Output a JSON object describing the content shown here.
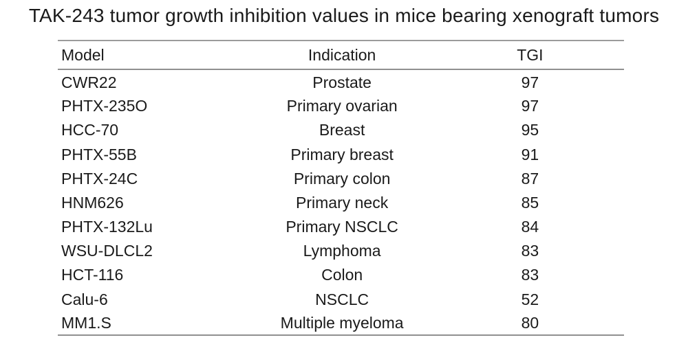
{
  "title": "TAK-243 tumor growth inhibition values in mice bearing xenograft tumors",
  "table": {
    "headers": [
      "Model",
      "Indication",
      "TGI"
    ],
    "rows": [
      [
        "CWR22",
        "Prostate",
        "97"
      ],
      [
        "PHTX-235O",
        "Primary ovarian",
        "97"
      ],
      [
        "HCC-70",
        "Breast",
        "95"
      ],
      [
        "PHTX-55B",
        "Primary breast",
        "91"
      ],
      [
        "PHTX-24C",
        "Primary colon",
        "87"
      ],
      [
        "HNM626",
        "Primary neck",
        "85"
      ],
      [
        "PHTX-132Lu",
        "Primary NSCLC",
        "84"
      ],
      [
        "WSU-DLCL2",
        "Lymphoma",
        "83"
      ],
      [
        "HCT-116",
        "Colon",
        "83"
      ],
      [
        "Calu-6",
        "NSCLC",
        "52"
      ],
      [
        "MM1.S",
        "Multiple myeloma",
        "80"
      ]
    ]
  },
  "chart_data": {
    "type": "table",
    "title": "TAK-243 tumor growth inhibition values in mice bearing xenograft tumors",
    "columns": [
      "Model",
      "Indication",
      "TGI"
    ],
    "models": [
      "CWR22",
      "PHTX-235O",
      "HCC-70",
      "PHTX-55B",
      "PHTX-24C",
      "HNM626",
      "PHTX-132Lu",
      "WSU-DLCL2",
      "HCT-116",
      "Calu-6",
      "MM1.S"
    ],
    "indications": [
      "Prostate",
      "Primary ovarian",
      "Breast",
      "Primary breast",
      "Primary colon",
      "Primary neck",
      "Primary NSCLC",
      "Lymphoma",
      "Colon",
      "NSCLC",
      "Multiple myeloma"
    ],
    "tgi_values": [
      97,
      97,
      95,
      91,
      87,
      85,
      84,
      83,
      83,
      52,
      80
    ]
  },
  "colors": {
    "text": "#1a1a1a",
    "rule": "#8f8f8f",
    "rule_top": "#9b9b9b",
    "background": "#ffffff"
  }
}
